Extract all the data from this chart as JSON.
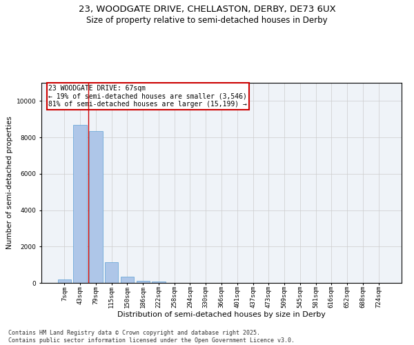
{
  "title_line1": "23, WOODGATE DRIVE, CHELLASTON, DERBY, DE73 6UX",
  "title_line2": "Size of property relative to semi-detached houses in Derby",
  "xlabel": "Distribution of semi-detached houses by size in Derby",
  "ylabel": "Number of semi-detached properties",
  "footer": "Contains HM Land Registry data © Crown copyright and database right 2025.\nContains public sector information licensed under the Open Government Licence v3.0.",
  "categories": [
    "7sqm",
    "43sqm",
    "79sqm",
    "115sqm",
    "150sqm",
    "186sqm",
    "222sqm",
    "258sqm",
    "294sqm",
    "330sqm",
    "366sqm",
    "401sqm",
    "437sqm",
    "473sqm",
    "509sqm",
    "545sqm",
    "581sqm",
    "616sqm",
    "652sqm",
    "688sqm",
    "724sqm"
  ],
  "values": [
    200,
    8700,
    8350,
    1150,
    350,
    130,
    60,
    0,
    0,
    0,
    0,
    0,
    0,
    0,
    0,
    0,
    0,
    0,
    0,
    0,
    0
  ],
  "bar_color": "#aec6e8",
  "bar_edge_color": "#5a9fd4",
  "property_line_x": 1.5,
  "annotation_title": "23 WOODGATE DRIVE: 67sqm",
  "annotation_line2": "← 19% of semi-detached houses are smaller (3,546)",
  "annotation_line3": "81% of semi-detached houses are larger (15,199) →",
  "annotation_box_color": "#ffffff",
  "annotation_box_edge": "#cc0000",
  "vline_color": "#cc0000",
  "ylim": [
    0,
    11000
  ],
  "yticks": [
    0,
    2000,
    4000,
    6000,
    8000,
    10000
  ],
  "grid_color": "#cccccc",
  "bg_color": "#eff3f8",
  "title1_fontsize": 9.5,
  "title2_fontsize": 8.5,
  "xlabel_fontsize": 8,
  "ylabel_fontsize": 7.5,
  "tick_fontsize": 6.5,
  "annotation_fontsize": 7,
  "footer_fontsize": 6
}
